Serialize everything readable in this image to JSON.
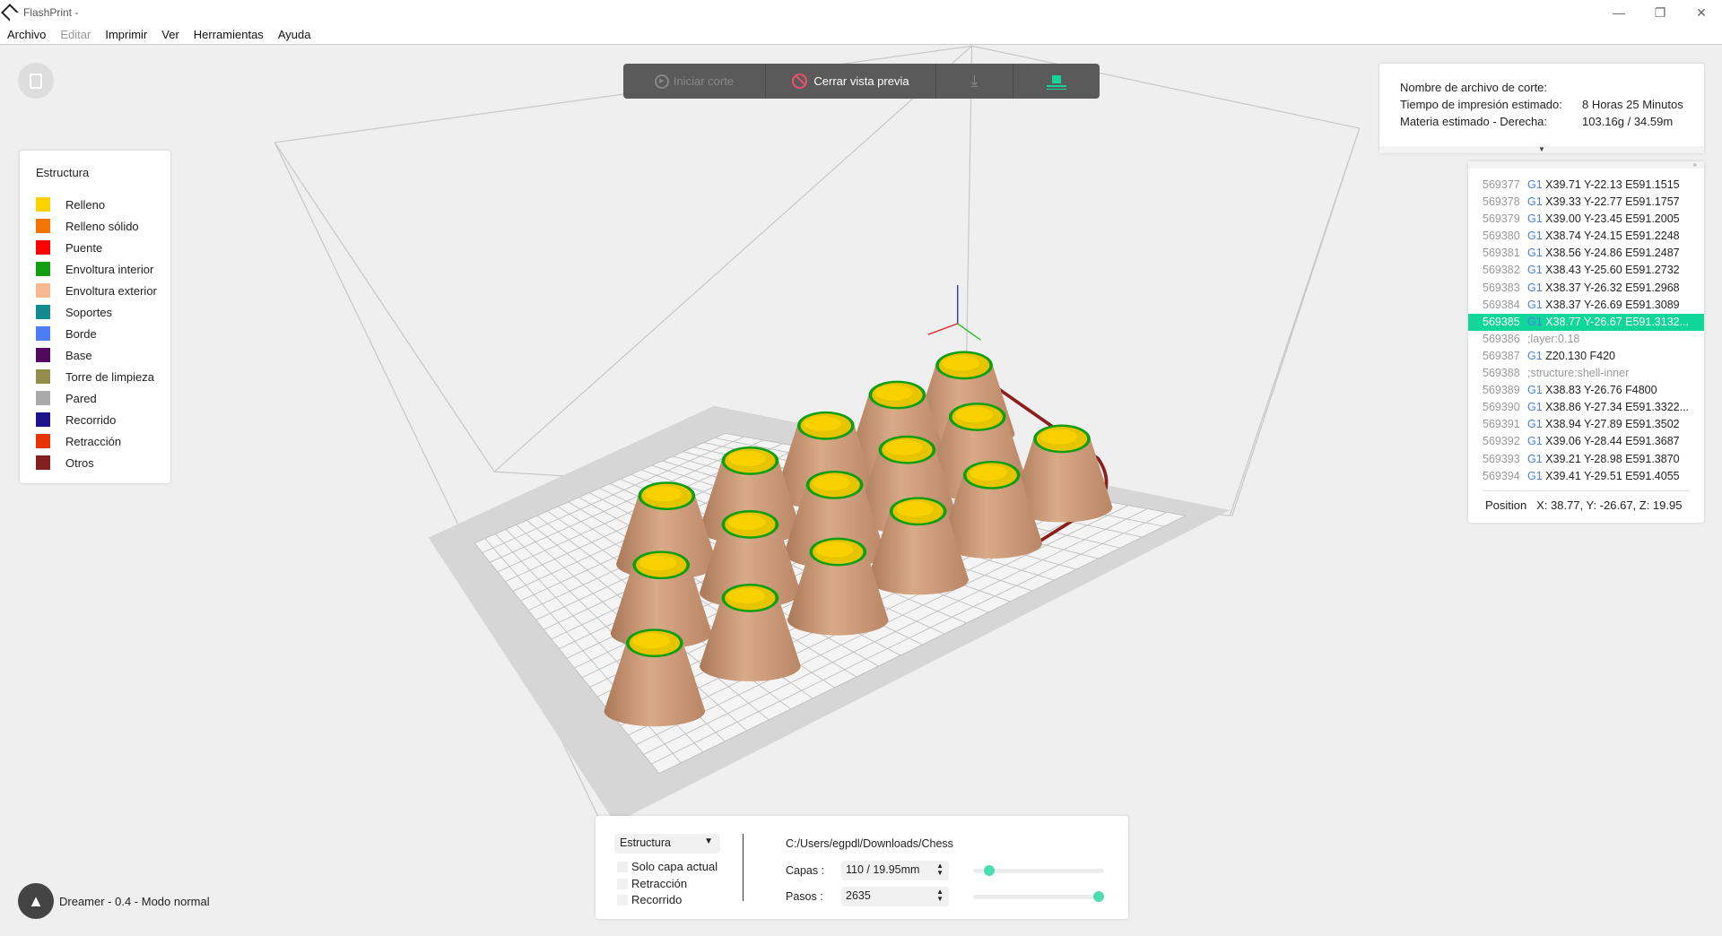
{
  "window": {
    "title": "FlashPrint -",
    "controls": [
      "minimize",
      "restore",
      "close"
    ]
  },
  "menu": [
    {
      "label": "Archivo",
      "enabled": true
    },
    {
      "label": "Editar",
      "enabled": false
    },
    {
      "label": "Imprimir",
      "enabled": true
    },
    {
      "label": "Ver",
      "enabled": true
    },
    {
      "label": "Herramientas",
      "enabled": true
    },
    {
      "label": "Ayuda",
      "enabled": true
    }
  ],
  "toolbar": {
    "start_slice": "Iniciar corte",
    "close_preview": "Cerrar vista previa",
    "accent": "#11d69a",
    "close_icon_color": "#f0506e"
  },
  "legend": {
    "title": "Estructura",
    "items": [
      {
        "label": "Relleno",
        "color": "#ffd400"
      },
      {
        "label": "Relleno sólido",
        "color": "#f57300"
      },
      {
        "label": "Puente",
        "color": "#ff0000"
      },
      {
        "label": "Envoltura interior",
        "color": "#0f9e0f"
      },
      {
        "label": "Envoltura exterior",
        "color": "#f9b88f"
      },
      {
        "label": "Soportes",
        "color": "#168890"
      },
      {
        "label": "Borde",
        "color": "#4a7ef8"
      },
      {
        "label": "Base",
        "color": "#520a60"
      },
      {
        "label": "Torre de limpieza",
        "color": "#958c4c"
      },
      {
        "label": "Pared",
        "color": "#aaaaaa"
      },
      {
        "label": "Recorrido",
        "color": "#1e148c"
      },
      {
        "label": "Retracción",
        "color": "#e63500"
      },
      {
        "label": "Otros",
        "color": "#871e1e"
      }
    ]
  },
  "info": {
    "file_label": "Nombre de archivo de corte:",
    "file_value": "",
    "time_label": "Tiempo de impresión estimado:",
    "time_value": "8 Horas 25 Minutos",
    "material_label": "Materia estimado - Derecha:",
    "material_value": "103.16g / 34.59m"
  },
  "gcode": {
    "lines": [
      {
        "n": "569377",
        "cmd": "G1",
        "rest": "X39.71 Y-22.13 E591.1515"
      },
      {
        "n": "569378",
        "cmd": "G1",
        "rest": "X39.33 Y-22.77 E591.1757"
      },
      {
        "n": "569379",
        "cmd": "G1",
        "rest": "X39.00 Y-23.45 E591.2005"
      },
      {
        "n": "569380",
        "cmd": "G1",
        "rest": "X38.74 Y-24.15 E591.2248"
      },
      {
        "n": "569381",
        "cmd": "G1",
        "rest": "X38.56 Y-24.86 E591.2487"
      },
      {
        "n": "569382",
        "cmd": "G1",
        "rest": "X38.43 Y-25.60 E591.2732"
      },
      {
        "n": "569383",
        "cmd": "G1",
        "rest": "X38.37 Y-26.32 E591.2968"
      },
      {
        "n": "569384",
        "cmd": "G1",
        "rest": "X38.37 Y-26.69 E591.3089"
      },
      {
        "n": "569385",
        "cmd": "G1",
        "rest": "X38.77 Y-26.67 E591.3132...",
        "selected": true
      },
      {
        "n": "569386",
        "cmd": "",
        "rest": ";layer:0.18"
      },
      {
        "n": "569387",
        "cmd": "G1",
        "rest": "Z20.130 F420"
      },
      {
        "n": "569388",
        "cmd": "",
        "rest": ";structure:shell-inner"
      },
      {
        "n": "569389",
        "cmd": "G1",
        "rest": "X38.83 Y-26.76 F4800"
      },
      {
        "n": "569390",
        "cmd": "G1",
        "rest": "X38.86 Y-27.34 E591.3322..."
      },
      {
        "n": "569391",
        "cmd": "G1",
        "rest": "X38.94 Y-27.89 E591.3502"
      },
      {
        "n": "569392",
        "cmd": "G1",
        "rest": "X39.06 Y-28.44 E591.3687"
      },
      {
        "n": "569393",
        "cmd": "G1",
        "rest": "X39.21 Y-28.98 E591.3870"
      },
      {
        "n": "569394",
        "cmd": "G1",
        "rest": "X39.41 Y-29.51 E591.4055"
      }
    ],
    "position_label": "Position",
    "position_value": "X: 38.77, Y: -26.67, Z: 19.95"
  },
  "bottom": {
    "mode": "Estructura",
    "only_current_layer": "Solo capa actual",
    "retraction": "Retracción",
    "travel": "Recorrido",
    "path": "C:/Users/egpdl/Downloads/Chess",
    "layers_label": "Capas :",
    "layers_value": "110 / 19.95mm",
    "layers_fraction": 0.09,
    "steps_label": "Pasos :",
    "steps_value": "2635",
    "steps_fraction": 1.0
  },
  "status": "Dreamer - 0.4 - Modo normal"
}
